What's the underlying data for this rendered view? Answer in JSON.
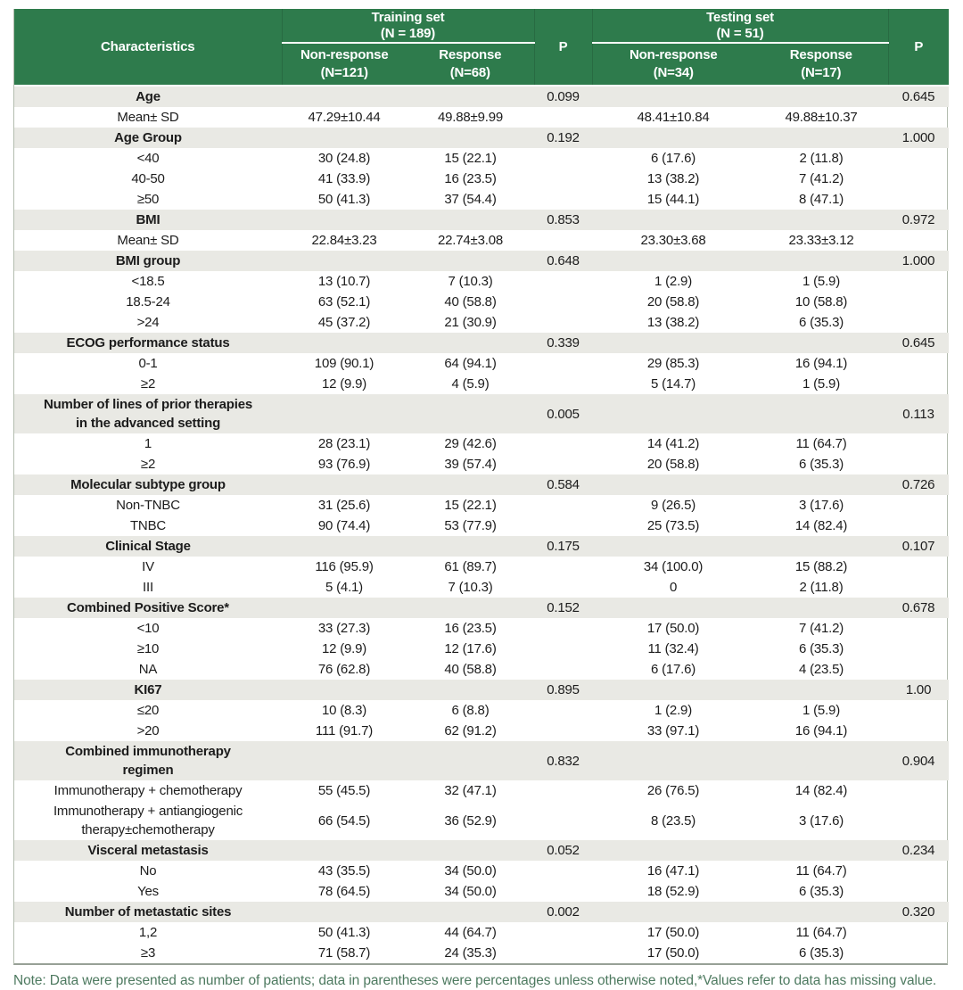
{
  "colors": {
    "header_green": "#2e7b4c",
    "row_shade": "#e9e9e4",
    "note_green": "#4e7a60",
    "border_light": "#b3bcae",
    "border_dark": "#97a096"
  },
  "chart_data": {
    "type": "table",
    "title": "Patient characteristics by response in training and testing sets"
  },
  "table": {
    "header": {
      "characteristics": "Characteristics",
      "p1": "P",
      "p2": "P",
      "groups": [
        {
          "title": "Training set",
          "n": "(N = 189)",
          "cols": [
            {
              "label": "Non-response\n(N=121)"
            },
            {
              "label": "Response\n(N=68)"
            }
          ]
        },
        {
          "title": "Testing set",
          "n": "(N = 51)",
          "cols": [
            {
              "label": "Non-response\n(N=34)"
            },
            {
              "label": "Response\n(N=17)"
            }
          ]
        }
      ]
    },
    "rows": [
      {
        "type": "category",
        "label": "Age",
        "cells": [
          "",
          "",
          "0.099",
          "",
          "",
          "0.645"
        ]
      },
      {
        "type": "sub",
        "label": "Mean± SD",
        "cells": [
          "47.29±10.44",
          "49.88±9.99",
          "",
          "48.41±10.84",
          "49.88±10.37",
          ""
        ]
      },
      {
        "type": "category",
        "label": "Age Group",
        "cells": [
          "",
          "",
          "0.192",
          "",
          "",
          "1.000"
        ]
      },
      {
        "type": "sub",
        "label": "<40",
        "cells": [
          "30 (24.8)",
          "15 (22.1)",
          "",
          "6 (17.6)",
          "2 (11.8)",
          ""
        ]
      },
      {
        "type": "sub",
        "label": "40-50",
        "cells": [
          "41 (33.9)",
          "16 (23.5)",
          "",
          "13 (38.2)",
          "7 (41.2)",
          ""
        ]
      },
      {
        "type": "sub",
        "label": "≥50",
        "cells": [
          "50 (41.3)",
          "37 (54.4)",
          "",
          "15 (44.1)",
          "8 (47.1)",
          ""
        ]
      },
      {
        "type": "category",
        "label": "BMI",
        "cells": [
          "",
          "",
          "0.853",
          "",
          "",
          "0.972"
        ]
      },
      {
        "type": "sub",
        "label": "Mean± SD",
        "cells": [
          "22.84±3.23",
          "22.74±3.08",
          "",
          "23.30±3.68",
          "23.33±3.12",
          ""
        ]
      },
      {
        "type": "category",
        "label": "BMI group",
        "cells": [
          "",
          "",
          "0.648",
          "",
          "",
          "1.000"
        ]
      },
      {
        "type": "sub",
        "label": "<18.5",
        "cells": [
          "13 (10.7)",
          "7 (10.3)",
          "",
          "1 (2.9)",
          "1 (5.9)",
          ""
        ]
      },
      {
        "type": "sub",
        "label": "18.5-24",
        "cells": [
          "63 (52.1)",
          "40 (58.8)",
          "",
          "20 (58.8)",
          "10 (58.8)",
          ""
        ]
      },
      {
        "type": "sub",
        "label": ">24",
        "cells": [
          "45 (37.2)",
          "21 (30.9)",
          "",
          "13 (38.2)",
          "6 (35.3)",
          ""
        ]
      },
      {
        "type": "category",
        "label": "ECOG performance status",
        "cells": [
          "",
          "",
          "0.339",
          "",
          "",
          "0.645"
        ]
      },
      {
        "type": "sub",
        "label": "0-1",
        "cells": [
          "109 (90.1)",
          "64 (94.1)",
          "",
          "29 (85.3)",
          "16 (94.1)",
          ""
        ]
      },
      {
        "type": "sub",
        "label": "≥2",
        "cells": [
          "12 (9.9)",
          "4 (5.9)",
          "",
          "5 (14.7)",
          "1 (5.9)",
          ""
        ]
      },
      {
        "type": "category",
        "label": "Number of lines of prior therapies\nin the advanced setting",
        "cells": [
          "",
          "",
          "0.005",
          "",
          "",
          "0.113"
        ]
      },
      {
        "type": "sub",
        "label": "1",
        "cells": [
          "28 (23.1)",
          "29 (42.6)",
          "",
          "14 (41.2)",
          "11 (64.7)",
          ""
        ]
      },
      {
        "type": "sub",
        "label": "≥2",
        "cells": [
          "93 (76.9)",
          "39 (57.4)",
          "",
          "20 (58.8)",
          "6 (35.3)",
          ""
        ]
      },
      {
        "type": "category",
        "label": "Molecular subtype group",
        "cells": [
          "",
          "",
          "0.584",
          "",
          "",
          "0.726"
        ]
      },
      {
        "type": "sub",
        "label": "Non-TNBC",
        "cells": [
          "31 (25.6)",
          "15 (22.1)",
          "",
          "9 (26.5)",
          "3 (17.6)",
          ""
        ]
      },
      {
        "type": "sub",
        "label": "TNBC",
        "cells": [
          "90 (74.4)",
          "53 (77.9)",
          "",
          "25 (73.5)",
          "14 (82.4)",
          ""
        ]
      },
      {
        "type": "category",
        "label": "Clinical Stage",
        "cells": [
          "",
          "",
          "0.175",
          "",
          "",
          "0.107"
        ]
      },
      {
        "type": "sub",
        "label": "IV",
        "cells": [
          "116 (95.9)",
          "61 (89.7)",
          "",
          "34 (100.0)",
          "15 (88.2)",
          ""
        ]
      },
      {
        "type": "sub",
        "label": "III",
        "cells": [
          "5 (4.1)",
          "7 (10.3)",
          "",
          "0",
          "2 (11.8)",
          ""
        ]
      },
      {
        "type": "category",
        "label": "Combined Positive Score*",
        "cells": [
          "",
          "",
          "0.152",
          "",
          "",
          "0.678"
        ]
      },
      {
        "type": "sub",
        "label": "<10",
        "cells": [
          "33 (27.3)",
          "16 (23.5)",
          "",
          "17 (50.0)",
          "7 (41.2)",
          ""
        ]
      },
      {
        "type": "sub",
        "label": "≥10",
        "cells": [
          "12 (9.9)",
          "12 (17.6)",
          "",
          "11 (32.4)",
          "6 (35.3)",
          ""
        ]
      },
      {
        "type": "sub",
        "label": "NA",
        "cells": [
          "76 (62.8)",
          "40 (58.8)",
          "",
          "6 (17.6)",
          "4 (23.5)",
          ""
        ]
      },
      {
        "type": "category",
        "label": "KI67",
        "cells": [
          "",
          "",
          "0.895",
          "",
          "",
          "1.00"
        ]
      },
      {
        "type": "sub",
        "label": "≤20",
        "cells": [
          "10 (8.3)",
          "6 (8.8)",
          "",
          "1 (2.9)",
          "1 (5.9)",
          ""
        ]
      },
      {
        "type": "sub",
        "label": ">20",
        "cells": [
          "111 (91.7)",
          "62 (91.2)",
          "",
          "33 (97.1)",
          "16 (94.1)",
          ""
        ]
      },
      {
        "type": "category",
        "label": "Combined immunotherapy\nregimen",
        "cells": [
          "",
          "",
          "0.832",
          "",
          "",
          "0.904"
        ]
      },
      {
        "type": "sub",
        "label": "Immunotherapy + chemotherapy",
        "cells": [
          "55 (45.5)",
          "32 (47.1)",
          "",
          "26 (76.5)",
          "14 (82.4)",
          ""
        ]
      },
      {
        "type": "sub",
        "label": "Immunotherapy + antiangiogenic\ntherapy±chemotherapy",
        "cells": [
          "66 (54.5)",
          "36 (52.9)",
          "",
          "8 (23.5)",
          "3 (17.6)",
          ""
        ]
      },
      {
        "type": "category",
        "label": "Visceral metastasis",
        "cells": [
          "",
          "",
          "0.052",
          "",
          "",
          "0.234"
        ]
      },
      {
        "type": "sub",
        "label": "No",
        "cells": [
          "43 (35.5)",
          "34 (50.0)",
          "",
          "16 (47.1)",
          "11 (64.7)",
          ""
        ]
      },
      {
        "type": "sub",
        "label": "Yes",
        "cells": [
          "78 (64.5)",
          "34 (50.0)",
          "",
          "18 (52.9)",
          "6 (35.3)",
          ""
        ]
      },
      {
        "type": "category",
        "label": "Number of metastatic sites",
        "cells": [
          "",
          "",
          "0.002",
          "",
          "",
          "0.320"
        ]
      },
      {
        "type": "sub",
        "label": "1,2",
        "cells": [
          "50 (41.3)",
          "44 (64.7)",
          "",
          "17 (50.0)",
          "11 (64.7)",
          ""
        ]
      },
      {
        "type": "sub",
        "label": "≥3",
        "cells": [
          "71 (58.7)",
          "24 (35.3)",
          "",
          "17 (50.0)",
          "6 (35.3)",
          ""
        ]
      }
    ]
  },
  "note": "Note: Data were presented as number of patients; data in parentheses were percentages unless otherwise noted,*Values refer to data has missing value."
}
